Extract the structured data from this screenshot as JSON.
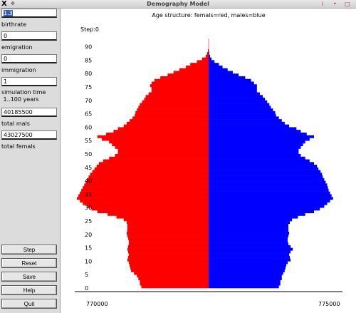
{
  "window": {
    "title": "Demography Model",
    "buttons": [
      "i",
      "•",
      "□"
    ]
  },
  "sidebar": {
    "fields": [
      {
        "value": "1.3",
        "label": "birthrate"
      },
      {
        "value": "0",
        "label": "emigration"
      },
      {
        "value": "0",
        "label": "immigration"
      },
      {
        "value": "1",
        "label": "simulation time\n 1..100 years"
      },
      {
        "value": "40185500",
        "label": "total mals"
      },
      {
        "value": "43027500",
        "label": "total femals"
      }
    ],
    "buttons": [
      "Step",
      "Reset",
      "Save",
      "Help",
      "Quit"
    ]
  },
  "chart_data": {
    "type": "bar",
    "orientation": "horizontal-population-pyramid",
    "title": "Age structure: femals=red, males=blue",
    "step_label": "Step:0",
    "colors": {
      "female": "#ff0000",
      "male": "#0000ff",
      "marker": "#e87e7e"
    },
    "y_ticks": [
      0,
      5,
      10,
      15,
      20,
      25,
      30,
      35,
      40,
      45,
      50,
      55,
      60,
      65,
      70,
      75,
      80,
      85,
      90
    ],
    "x_ticks": [
      {
        "label": "770000",
        "value": 770000
      },
      {
        "label": "775000",
        "value": 775000
      }
    ],
    "ages": [
      0,
      1,
      2,
      3,
      4,
      5,
      6,
      7,
      8,
      9,
      10,
      11,
      12,
      13,
      14,
      15,
      16,
      17,
      18,
      19,
      20,
      21,
      22,
      23,
      24,
      25,
      26,
      27,
      28,
      29,
      30,
      31,
      32,
      33,
      34,
      35,
      36,
      37,
      38,
      39,
      40,
      41,
      42,
      43,
      44,
      45,
      46,
      47,
      48,
      49,
      50,
      51,
      52,
      53,
      54,
      55,
      56,
      57,
      58,
      59,
      60,
      61,
      62,
      63,
      64,
      65,
      66,
      67,
      68,
      69,
      70,
      71,
      72,
      73,
      74,
      75,
      76,
      77,
      78,
      79,
      80,
      81,
      82,
      83,
      84,
      85,
      86,
      87,
      88,
      89
    ],
    "series": [
      {
        "name": "femals",
        "values": [
          460000,
          470000,
          470000,
          480000,
          490000,
          510000,
          530000,
          535000,
          540000,
          545000,
          555000,
          550000,
          545000,
          550000,
          555000,
          550000,
          545000,
          545000,
          550000,
          555000,
          560000,
          555000,
          555000,
          555000,
          560000,
          580000,
          630000,
          690000,
          760000,
          800000,
          830000,
          860000,
          880000,
          900000,
          890000,
          880000,
          870000,
          860000,
          850000,
          840000,
          830000,
          820000,
          810000,
          795000,
          780000,
          765000,
          750000,
          720000,
          680000,
          640000,
          620000,
          620000,
          640000,
          660000,
          680000,
          730000,
          760000,
          700000,
          650000,
          620000,
          580000,
          560000,
          540000,
          520000,
          505000,
          500000,
          490000,
          480000,
          470000,
          455000,
          440000,
          430000,
          410000,
          390000,
          390000,
          400000,
          390000,
          370000,
          330000,
          280000,
          240000,
          200000,
          155000,
          125000,
          80000,
          45000,
          20000,
          10000,
          5000,
          2000
        ]
      },
      {
        "name": "males",
        "values": [
          480000,
          490000,
          490000,
          500000,
          500000,
          510000,
          520000,
          525000,
          530000,
          540000,
          560000,
          555000,
          550000,
          560000,
          575000,
          560000,
          545000,
          540000,
          540000,
          545000,
          550000,
          545000,
          545000,
          545000,
          555000,
          570000,
          610000,
          660000,
          720000,
          760000,
          790000,
          810000,
          830000,
          850000,
          840000,
          830000,
          820000,
          815000,
          810000,
          800000,
          790000,
          780000,
          775000,
          765000,
          750000,
          740000,
          720000,
          690000,
          660000,
          630000,
          615000,
          615000,
          630000,
          645000,
          660000,
          690000,
          720000,
          670000,
          630000,
          600000,
          550000,
          520000,
          500000,
          480000,
          460000,
          455000,
          440000,
          425000,
          415000,
          400000,
          385000,
          370000,
          350000,
          330000,
          330000,
          330000,
          310000,
          290000,
          250000,
          205000,
          165000,
          130000,
          95000,
          70000,
          40000,
          20000,
          10000,
          5000,
          2000,
          1000
        ]
      }
    ]
  }
}
